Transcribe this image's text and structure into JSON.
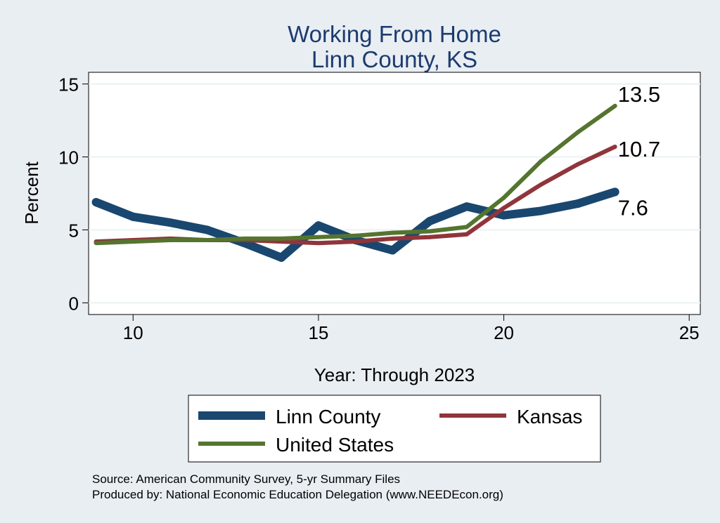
{
  "chart_data": {
    "type": "line",
    "title": "Working From Home",
    "subtitle": "Linn County, KS",
    "xlabel": "Year: Through 2023",
    "ylabel": "Percent",
    "xlim": [
      8.8,
      25.3
    ],
    "ylim": [
      -0.8,
      15.8
    ],
    "xticks": [
      10,
      15,
      20,
      25
    ],
    "yticks": [
      0,
      5,
      10,
      15
    ],
    "grid": true,
    "legend_position": "bottom",
    "x": [
      9,
      10,
      11,
      12,
      13,
      14,
      15,
      16,
      17,
      18,
      19,
      20,
      21,
      22,
      23
    ],
    "series": [
      {
        "name": "Linn County",
        "color": "#1a476f",
        "values": [
          6.9,
          5.9,
          5.5,
          5.0,
          4.1,
          3.1,
          5.3,
          4.3,
          3.6,
          5.6,
          6.6,
          6.0,
          6.3,
          6.8,
          7.6
        ],
        "end_label": "7.6"
      },
      {
        "name": "Kansas",
        "color": "#90353b",
        "values": [
          4.2,
          4.3,
          4.4,
          4.3,
          4.3,
          4.2,
          4.1,
          4.2,
          4.4,
          4.5,
          4.7,
          6.5,
          8.1,
          9.5,
          10.7
        ],
        "end_label": "10.7"
      },
      {
        "name": "United States",
        "color": "#55752f",
        "values": [
          4.1,
          4.2,
          4.3,
          4.3,
          4.4,
          4.4,
          4.5,
          4.6,
          4.8,
          4.9,
          5.2,
          7.2,
          9.7,
          11.7,
          13.5
        ],
        "end_label": "13.5"
      }
    ]
  },
  "footer": {
    "source": "Source: American Community Survey, 5-yr Summary Files",
    "produced_by": "Produced by: National Economic Education Delegation (www.NEEDEcon.org)"
  }
}
